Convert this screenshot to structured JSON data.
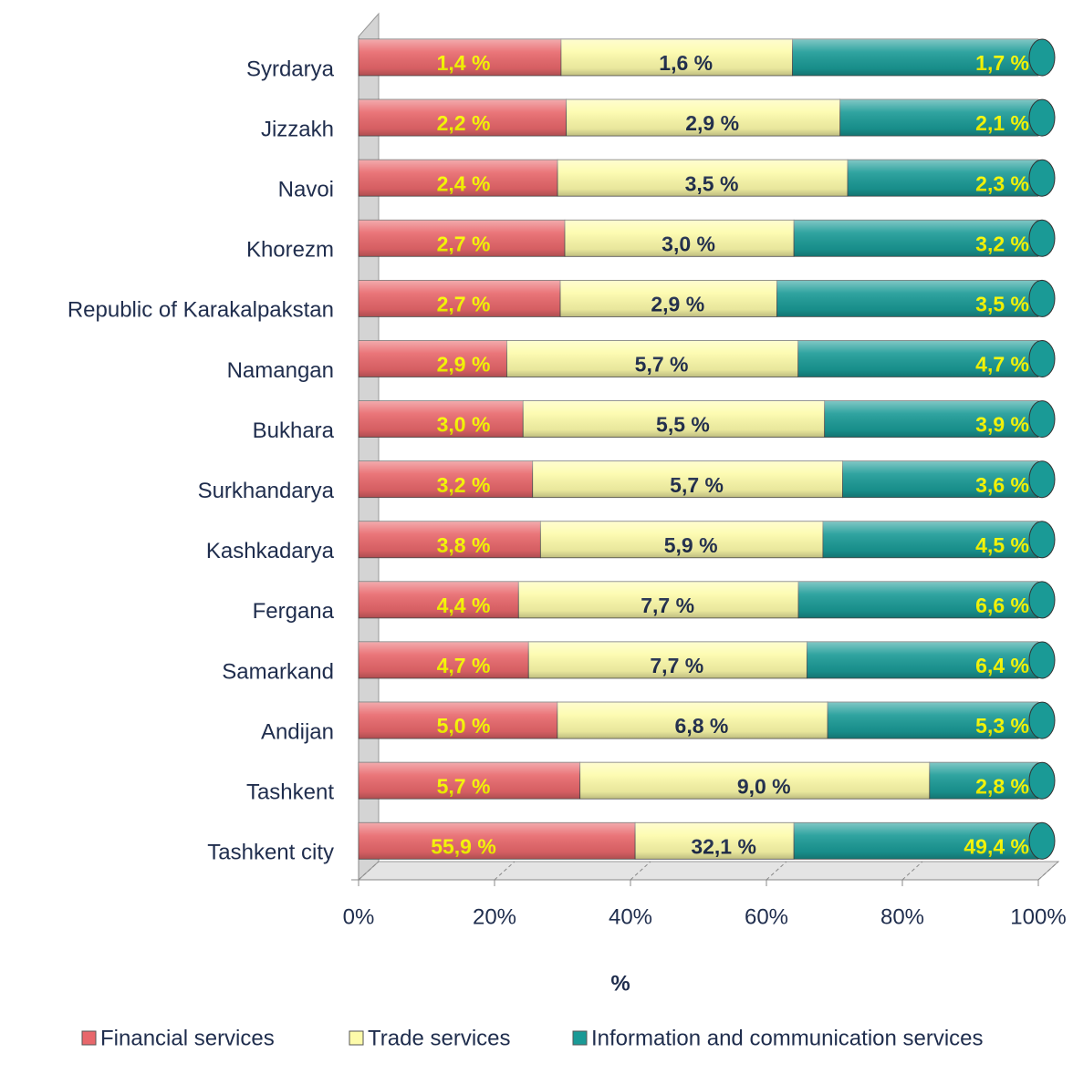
{
  "chart_data": {
    "type": "bar",
    "orientation": "horizontal",
    "stacking": "percent",
    "x_label": "%",
    "categories": [
      "Syrdarya",
      "Jizzakh",
      "Navoi",
      "Khorezm",
      "Republic of Karakalpakstan",
      "Namangan",
      "Bukhara",
      "Surkhandarya",
      "Kashkadarya",
      "Fergana",
      "Samarkand",
      "Andijan",
      "Tashkent",
      "Tashkent city"
    ],
    "series": [
      {
        "name": "Financial services",
        "color": "#e8676b",
        "label_color": "#ffff00",
        "values": [
          1.4,
          2.2,
          2.4,
          2.7,
          2.7,
          2.9,
          3.0,
          3.2,
          3.8,
          4.4,
          4.7,
          5.0,
          5.7,
          55.9
        ],
        "value_labels": [
          "1,4 %",
          "2,2 %",
          "2,4 %",
          "2,7 %",
          "2,7 %",
          "2,9 %",
          "3,0 %",
          "3,2 %",
          "3,8 %",
          "4,4 %",
          "4,7 %",
          "5,0 %",
          "5,7 %",
          "55,9 %"
        ]
      },
      {
        "name": "Trade services",
        "color": "#fdfbaa",
        "label_color": "#1f2d4d",
        "values": [
          1.6,
          2.9,
          3.5,
          3.0,
          2.9,
          5.7,
          5.5,
          5.7,
          5.9,
          7.7,
          7.7,
          6.8,
          9.0,
          32.1
        ],
        "value_labels": [
          "1,6 %",
          "2,9 %",
          "3,5 %",
          "3,0 %",
          "2,9 %",
          "5,7 %",
          "5,5 %",
          "5,7 %",
          "5,9 %",
          "7,7 %",
          "7,7 %",
          "6,8 %",
          "9,0 %",
          "32,1 %"
        ]
      },
      {
        "name": "Information and communication services",
        "color": "#1a9a96",
        "label_color": "#ffff00",
        "values": [
          1.7,
          2.1,
          2.3,
          3.2,
          3.5,
          4.7,
          3.9,
          3.6,
          4.5,
          6.6,
          6.4,
          5.3,
          2.8,
          49.4
        ],
        "value_labels": [
          "1,7 %",
          "2,1 %",
          "2,3 %",
          "3,2 %",
          "3,5 %",
          "4,7 %",
          "3,9 %",
          "3,6 %",
          "4,5 %",
          "6,6 %",
          "6,4 %",
          "5,3 %",
          "2,8 %",
          "49,4 %"
        ]
      }
    ],
    "xlim": [
      0,
      100
    ],
    "xticks": [
      {
        "value": 0,
        "label": "0%"
      },
      {
        "value": 20,
        "label": "20%"
      },
      {
        "value": 40,
        "label": "40%"
      },
      {
        "value": 60,
        "label": "60%"
      },
      {
        "value": 80,
        "label": "80%"
      },
      {
        "value": 100,
        "label": "100%"
      }
    ],
    "legend": "bottom"
  }
}
